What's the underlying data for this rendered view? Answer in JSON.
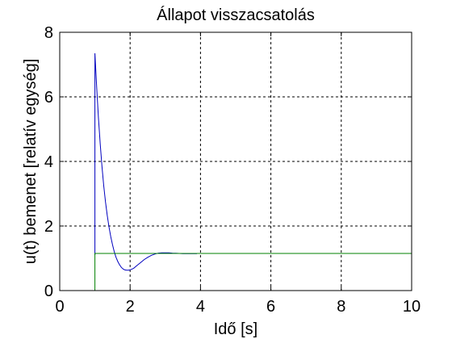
{
  "chart_data": {
    "type": "line",
    "title": "Állapot visszacsatolás",
    "xlabel": "Idő [s]",
    "ylabel": "u(t) bemenet [relatív egység]",
    "xlim": [
      0,
      10
    ],
    "ylim": [
      0,
      8
    ],
    "xticks": [
      0,
      2,
      4,
      6,
      8,
      10
    ],
    "yticks": [
      0,
      2,
      4,
      6,
      8
    ],
    "grid": true,
    "grid_style": "dashed",
    "series": [
      {
        "color": "#0000bf",
        "x": [
          1.0,
          1.0,
          1.05,
          1.1,
          1.15,
          1.2,
          1.25,
          1.3,
          1.35,
          1.4,
          1.45,
          1.5,
          1.55,
          1.6,
          1.65,
          1.7,
          1.75,
          1.8,
          1.85,
          1.9,
          1.95,
          2.0,
          2.1,
          2.2,
          2.3,
          2.4,
          2.5,
          2.6,
          2.7,
          2.8,
          2.9,
          3.0,
          3.1,
          3.2,
          3.3,
          3.4,
          3.5,
          3.6,
          3.7,
          3.8,
          3.9
        ],
        "y": [
          1.1,
          7.35,
          6.3,
          5.35,
          4.55,
          3.85,
          3.25,
          2.75,
          2.33,
          1.97,
          1.67,
          1.42,
          1.2,
          1.03,
          0.9,
          0.8,
          0.72,
          0.67,
          0.64,
          0.63,
          0.63,
          0.64,
          0.69,
          0.78,
          0.87,
          0.96,
          1.03,
          1.09,
          1.13,
          1.16,
          1.17,
          1.17,
          1.17,
          1.16,
          1.155,
          1.15,
          1.145,
          1.145,
          1.145,
          1.145,
          1.145
        ]
      },
      {
        "color": "#008000",
        "x": [
          0,
          1.0,
          1.0,
          10
        ],
        "y": [
          0,
          0,
          1.15,
          1.15
        ]
      }
    ]
  }
}
